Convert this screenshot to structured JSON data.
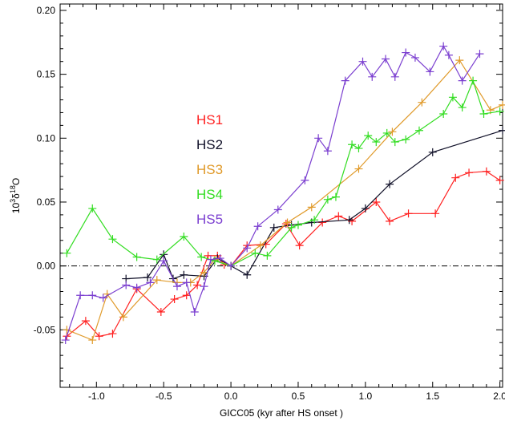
{
  "chart_data": {
    "type": "line",
    "xlabel": "GICC05 (kyr after HS onset )",
    "ylabel_base": "10",
    "ylabel_sup1": "3",
    "ylabel_delta": "δ",
    "ylabel_sup2": "18",
    "ylabel_end": "O",
    "xlim": [
      -1.27,
      2.02
    ],
    "ylim": [
      -0.095,
      0.205
    ],
    "xticks": [
      -1.0,
      -0.5,
      0.0,
      0.5,
      1.0,
      1.5,
      2.0
    ],
    "xtick_labels": [
      "-1.0",
      "-0.5",
      "0.0",
      "0.5",
      "1.0",
      "1.5",
      "2.0"
    ],
    "yticks": [
      -0.05,
      0.0,
      0.05,
      0.1,
      0.15,
      0.2
    ],
    "ytick_labels": [
      "-0.05",
      "0.00",
      "0.05",
      "0.10",
      "0.15",
      "0.20"
    ],
    "reference_line": {
      "y": 0,
      "style": "dash-dot"
    },
    "series": [
      {
        "name": "HS1",
        "color": "#ff2020",
        "marker": "plus",
        "x": [
          -1.22,
          -1.08,
          -0.98,
          -0.88,
          -0.7,
          -0.52,
          -0.42,
          -0.33,
          -0.25,
          -0.17,
          -0.1,
          -0.05,
          0.0,
          0.12,
          0.26,
          0.41,
          0.51,
          0.68,
          0.8,
          0.9,
          1.08,
          1.18,
          1.32,
          1.52,
          1.67,
          1.77,
          1.9,
          2.0
        ],
        "y": [
          -0.055,
          -0.043,
          -0.055,
          -0.053,
          -0.018,
          -0.036,
          -0.026,
          -0.023,
          -0.015,
          0.008,
          0.008,
          0.001,
          0.0,
          0.016,
          0.017,
          0.033,
          0.016,
          0.034,
          0.039,
          0.035,
          0.05,
          0.035,
          0.041,
          0.041,
          0.069,
          0.073,
          0.074,
          0.067
        ]
      },
      {
        "name": "HS2",
        "color": "#101028",
        "marker": "plus",
        "x": [
          -0.78,
          -0.62,
          -0.5,
          -0.43,
          -0.35,
          -0.2,
          -0.1,
          0.0,
          0.12,
          0.32,
          0.45,
          0.6,
          0.88,
          1.0,
          1.18,
          1.5,
          2.02
        ],
        "y": [
          -0.01,
          -0.009,
          0.009,
          -0.01,
          -0.007,
          -0.008,
          0.006,
          0.0,
          -0.007,
          0.03,
          0.032,
          0.034,
          0.036,
          0.045,
          0.064,
          0.089,
          0.106
        ]
      },
      {
        "name": "HS3",
        "color": "#e09a2a",
        "marker": "plus",
        "x": [
          -1.22,
          -1.03,
          -0.92,
          -0.8,
          -0.55,
          -0.4,
          -0.3,
          -0.2,
          -0.12,
          0.0,
          0.22,
          0.42,
          0.6,
          0.95,
          1.2,
          1.42,
          1.7,
          1.93,
          2.02
        ],
        "y": [
          -0.05,
          -0.058,
          -0.022,
          -0.04,
          -0.011,
          -0.013,
          -0.013,
          -0.005,
          0.005,
          0.0,
          0.016,
          0.034,
          0.046,
          0.076,
          0.105,
          0.128,
          0.161,
          0.122,
          0.126
        ]
      },
      {
        "name": "HS4",
        "color": "#33dd22",
        "marker": "plus",
        "x": [
          -1.22,
          -1.03,
          -0.88,
          -0.7,
          -0.55,
          -0.35,
          -0.22,
          -0.12,
          0.0,
          0.18,
          0.27,
          0.45,
          0.5,
          0.62,
          0.72,
          0.78,
          0.9,
          0.95,
          1.02,
          1.08,
          1.16,
          1.22,
          1.3,
          1.4,
          1.58,
          1.65,
          1.72,
          1.8,
          1.88,
          2.0
        ],
        "y": [
          0.01,
          0.045,
          0.021,
          0.007,
          0.005,
          0.023,
          0.007,
          0.004,
          0.0,
          0.01,
          0.008,
          0.03,
          0.032,
          0.036,
          0.052,
          0.054,
          0.095,
          0.092,
          0.102,
          0.097,
          0.104,
          0.097,
          0.099,
          0.106,
          0.119,
          0.132,
          0.124,
          0.145,
          0.119,
          0.121
        ]
      },
      {
        "name": "HS5",
        "color": "#7b3fd0",
        "marker": "plus",
        "x": [
          -1.23,
          -1.12,
          -1.03,
          -0.95,
          -0.78,
          -0.7,
          -0.6,
          -0.5,
          -0.4,
          -0.33,
          -0.27,
          -0.2,
          -0.15,
          -0.08,
          0.0,
          0.12,
          0.2,
          0.35,
          0.55,
          0.65,
          0.72,
          0.85,
          0.98,
          1.05,
          1.15,
          1.22,
          1.3,
          1.37,
          1.48,
          1.58,
          1.62,
          1.72,
          1.85
        ],
        "y": [
          -0.058,
          -0.023,
          -0.023,
          -0.025,
          -0.015,
          -0.017,
          -0.013,
          0.004,
          -0.016,
          -0.013,
          -0.036,
          -0.016,
          0.005,
          0.006,
          0.0,
          0.014,
          0.031,
          0.044,
          0.067,
          0.1,
          0.09,
          0.145,
          0.16,
          0.148,
          0.162,
          0.148,
          0.167,
          0.163,
          0.152,
          0.172,
          0.165,
          0.145,
          0.166
        ]
      }
    ],
    "legend_placement": "upper-left-center"
  }
}
